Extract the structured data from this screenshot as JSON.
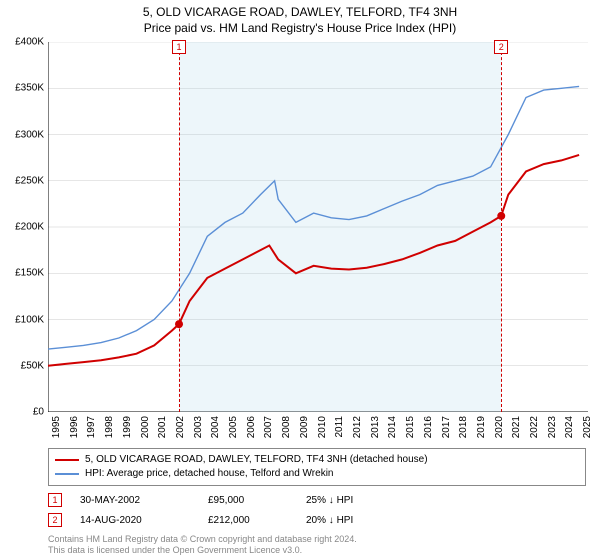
{
  "title1": "5, OLD VICARAGE ROAD, DAWLEY, TELFORD, TF4 3NH",
  "title2": "Price paid vs. HM Land Registry's House Price Index (HPI)",
  "chart": {
    "type": "line",
    "xlim": [
      1995,
      2025.5
    ],
    "ylim": [
      0,
      400000
    ],
    "ytick_step": 50000,
    "yticks": [
      "£0",
      "£50K",
      "£100K",
      "£150K",
      "£200K",
      "£250K",
      "£300K",
      "£350K",
      "£400K"
    ],
    "xticks": [
      1995,
      1996,
      1997,
      1998,
      1999,
      2000,
      2001,
      2002,
      2003,
      2004,
      2005,
      2006,
      2007,
      2008,
      2009,
      2010,
      2011,
      2012,
      2013,
      2014,
      2015,
      2016,
      2017,
      2018,
      2019,
      2020,
      2021,
      2022,
      2023,
      2024,
      2025
    ],
    "background_color": "#ffffff",
    "grid_color": "#cccccc",
    "shade_color": "rgba(173,216,230,0.22)",
    "shade_from_year": 2002.4,
    "shade_to_year": 2020.6,
    "vline_color": "#d00000",
    "series": [
      {
        "name": "property",
        "color": "#d00000",
        "width": 2,
        "label": "5, OLD VICARAGE ROAD, DAWLEY, TELFORD, TF4 3NH (detached house)",
        "x": [
          1995,
          1996,
          1997,
          1998,
          1999,
          2000,
          2001,
          2002,
          2002.4,
          2003,
          2004,
          2005,
          2006,
          2007,
          2007.5,
          2008,
          2009,
          2010,
          2011,
          2012,
          2013,
          2014,
          2015,
          2016,
          2017,
          2018,
          2019,
          2020,
          2020.6,
          2021,
          2022,
          2023,
          2024,
          2025
        ],
        "y": [
          50000,
          52000,
          54000,
          56000,
          59000,
          63000,
          72000,
          88000,
          95000,
          120000,
          145000,
          155000,
          165000,
          175000,
          180000,
          165000,
          150000,
          158000,
          155000,
          154000,
          156000,
          160000,
          165000,
          172000,
          180000,
          185000,
          195000,
          205000,
          212000,
          235000,
          260000,
          268000,
          272000,
          278000
        ]
      },
      {
        "name": "hpi",
        "color": "#5b8fd6",
        "width": 1.4,
        "label": "HPI: Average price, detached house, Telford and Wrekin",
        "x": [
          1995,
          1996,
          1997,
          1998,
          1999,
          2000,
          2001,
          2002,
          2003,
          2004,
          2005,
          2006,
          2007,
          2007.8,
          2008,
          2009,
          2010,
          2011,
          2012,
          2013,
          2014,
          2015,
          2016,
          2017,
          2018,
          2019,
          2020,
          2021,
          2022,
          2023,
          2024,
          2025
        ],
        "y": [
          68000,
          70000,
          72000,
          75000,
          80000,
          88000,
          100000,
          120000,
          150000,
          190000,
          205000,
          215000,
          235000,
          250000,
          230000,
          205000,
          215000,
          210000,
          208000,
          212000,
          220000,
          228000,
          235000,
          245000,
          250000,
          255000,
          265000,
          300000,
          340000,
          348000,
          350000,
          352000
        ]
      }
    ],
    "sale_markers": [
      {
        "n": "1",
        "year": 2002.4,
        "price": 95000
      },
      {
        "n": "2",
        "year": 2020.6,
        "price": 212000
      }
    ]
  },
  "legend": {
    "row1": "5, OLD VICARAGE ROAD, DAWLEY, TELFORD, TF4 3NH (detached house)",
    "row2": "HPI: Average price, detached house, Telford and Wrekin"
  },
  "sales": [
    {
      "n": "1",
      "date": "30-MAY-2002",
      "price": "£95,000",
      "pct": "25% ↓ HPI"
    },
    {
      "n": "2",
      "date": "14-AUG-2020",
      "price": "£212,000",
      "pct": "20% ↓ HPI"
    }
  ],
  "footer1": "Contains HM Land Registry data © Crown copyright and database right 2024.",
  "footer2": "This data is licensed under the Open Government Licence v3.0."
}
